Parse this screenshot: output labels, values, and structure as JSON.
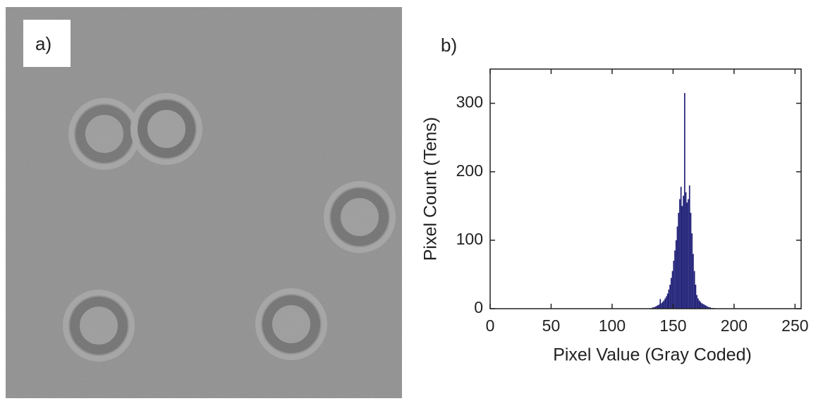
{
  "image_panel": {
    "label": "a)"
  },
  "chart_data": {
    "type": "histogram",
    "panel_label": "b)",
    "x_label": "Pixel Value (Gray Coded)",
    "y_label": "Pixel Count (Tens)",
    "color": "#23237a",
    "bins": [
      130,
      131,
      132,
      133,
      134,
      135,
      136,
      137,
      138,
      139,
      140,
      141,
      142,
      143,
      144,
      145,
      146,
      147,
      148,
      149,
      150,
      151,
      152,
      153,
      154,
      155,
      156,
      157,
      158,
      159,
      160,
      161,
      162,
      163,
      164,
      165,
      166,
      167,
      168,
      169,
      170,
      171,
      172,
      173,
      174,
      175,
      176,
      177,
      178,
      179,
      180,
      181,
      182,
      183,
      184,
      185
    ],
    "values": [
      0,
      1,
      1,
      2,
      2,
      3,
      4,
      5,
      6,
      14,
      8,
      10,
      12,
      15,
      18,
      22,
      28,
      35,
      45,
      55,
      70,
      85,
      100,
      120,
      140,
      160,
      178,
      150,
      165,
      315,
      170,
      155,
      160,
      180,
      140,
      110,
      80,
      55,
      35,
      20,
      15,
      12,
      10,
      8,
      7,
      6,
      5,
      4,
      3,
      2,
      2,
      1,
      1,
      1,
      0
    ],
    "xlim": [
      0,
      255
    ],
    "xticks": [
      0,
      50,
      100,
      150,
      200,
      250
    ],
    "ylim": [
      0,
      350
    ],
    "yticks": [
      0,
      100,
      200,
      300
    ]
  }
}
